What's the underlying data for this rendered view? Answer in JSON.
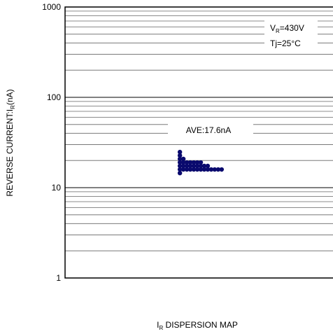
{
  "chart_data": {
    "type": "scatter",
    "log_y": true,
    "ylim": [
      1,
      1000
    ],
    "yticks": [
      1,
      10,
      100,
      1000
    ],
    "minor_yticks": [
      2,
      3,
      4,
      5,
      6,
      7,
      8,
      9,
      20,
      30,
      40,
      50,
      60,
      70,
      80,
      90,
      200,
      300,
      400,
      500,
      600,
      700,
      800,
      900
    ],
    "xlim": [
      0,
      77
    ],
    "grid": true,
    "y_label": {
      "main": "REVERSE CURRENT:I",
      "sub": "R",
      "rest": "(nA)"
    },
    "x_label": {
      "main": "I",
      "sub": "R",
      "rest": " DISPERSION MAP"
    },
    "annotations": {
      "average": "AVE:17.6nA",
      "voltage": {
        "main": "V",
        "sub": "R",
        "rest": "=430V"
      },
      "temperature": "Tj=25°C"
    },
    "series": [
      {
        "color": "#0a0a6e",
        "x": [
          33,
          33,
          33,
          33,
          33,
          33,
          33,
          34,
          34,
          34,
          34,
          35,
          35,
          35,
          36,
          36,
          36,
          37,
          37,
          37,
          38,
          38,
          38,
          39,
          39,
          39,
          40,
          40,
          41,
          41,
          42,
          43,
          44,
          45
        ],
        "values": [
          24.8,
          22.7,
          20.8,
          19.0,
          17.4,
          15.9,
          14.5,
          20.8,
          19.0,
          17.4,
          15.9,
          19.0,
          17.4,
          15.9,
          19.0,
          17.4,
          15.9,
          19.0,
          17.4,
          15.9,
          19.0,
          17.4,
          15.9,
          19.0,
          17.4,
          15.9,
          17.4,
          15.9,
          17.4,
          15.9,
          15.9,
          15.9,
          15.9,
          15.9
        ]
      }
    ]
  }
}
